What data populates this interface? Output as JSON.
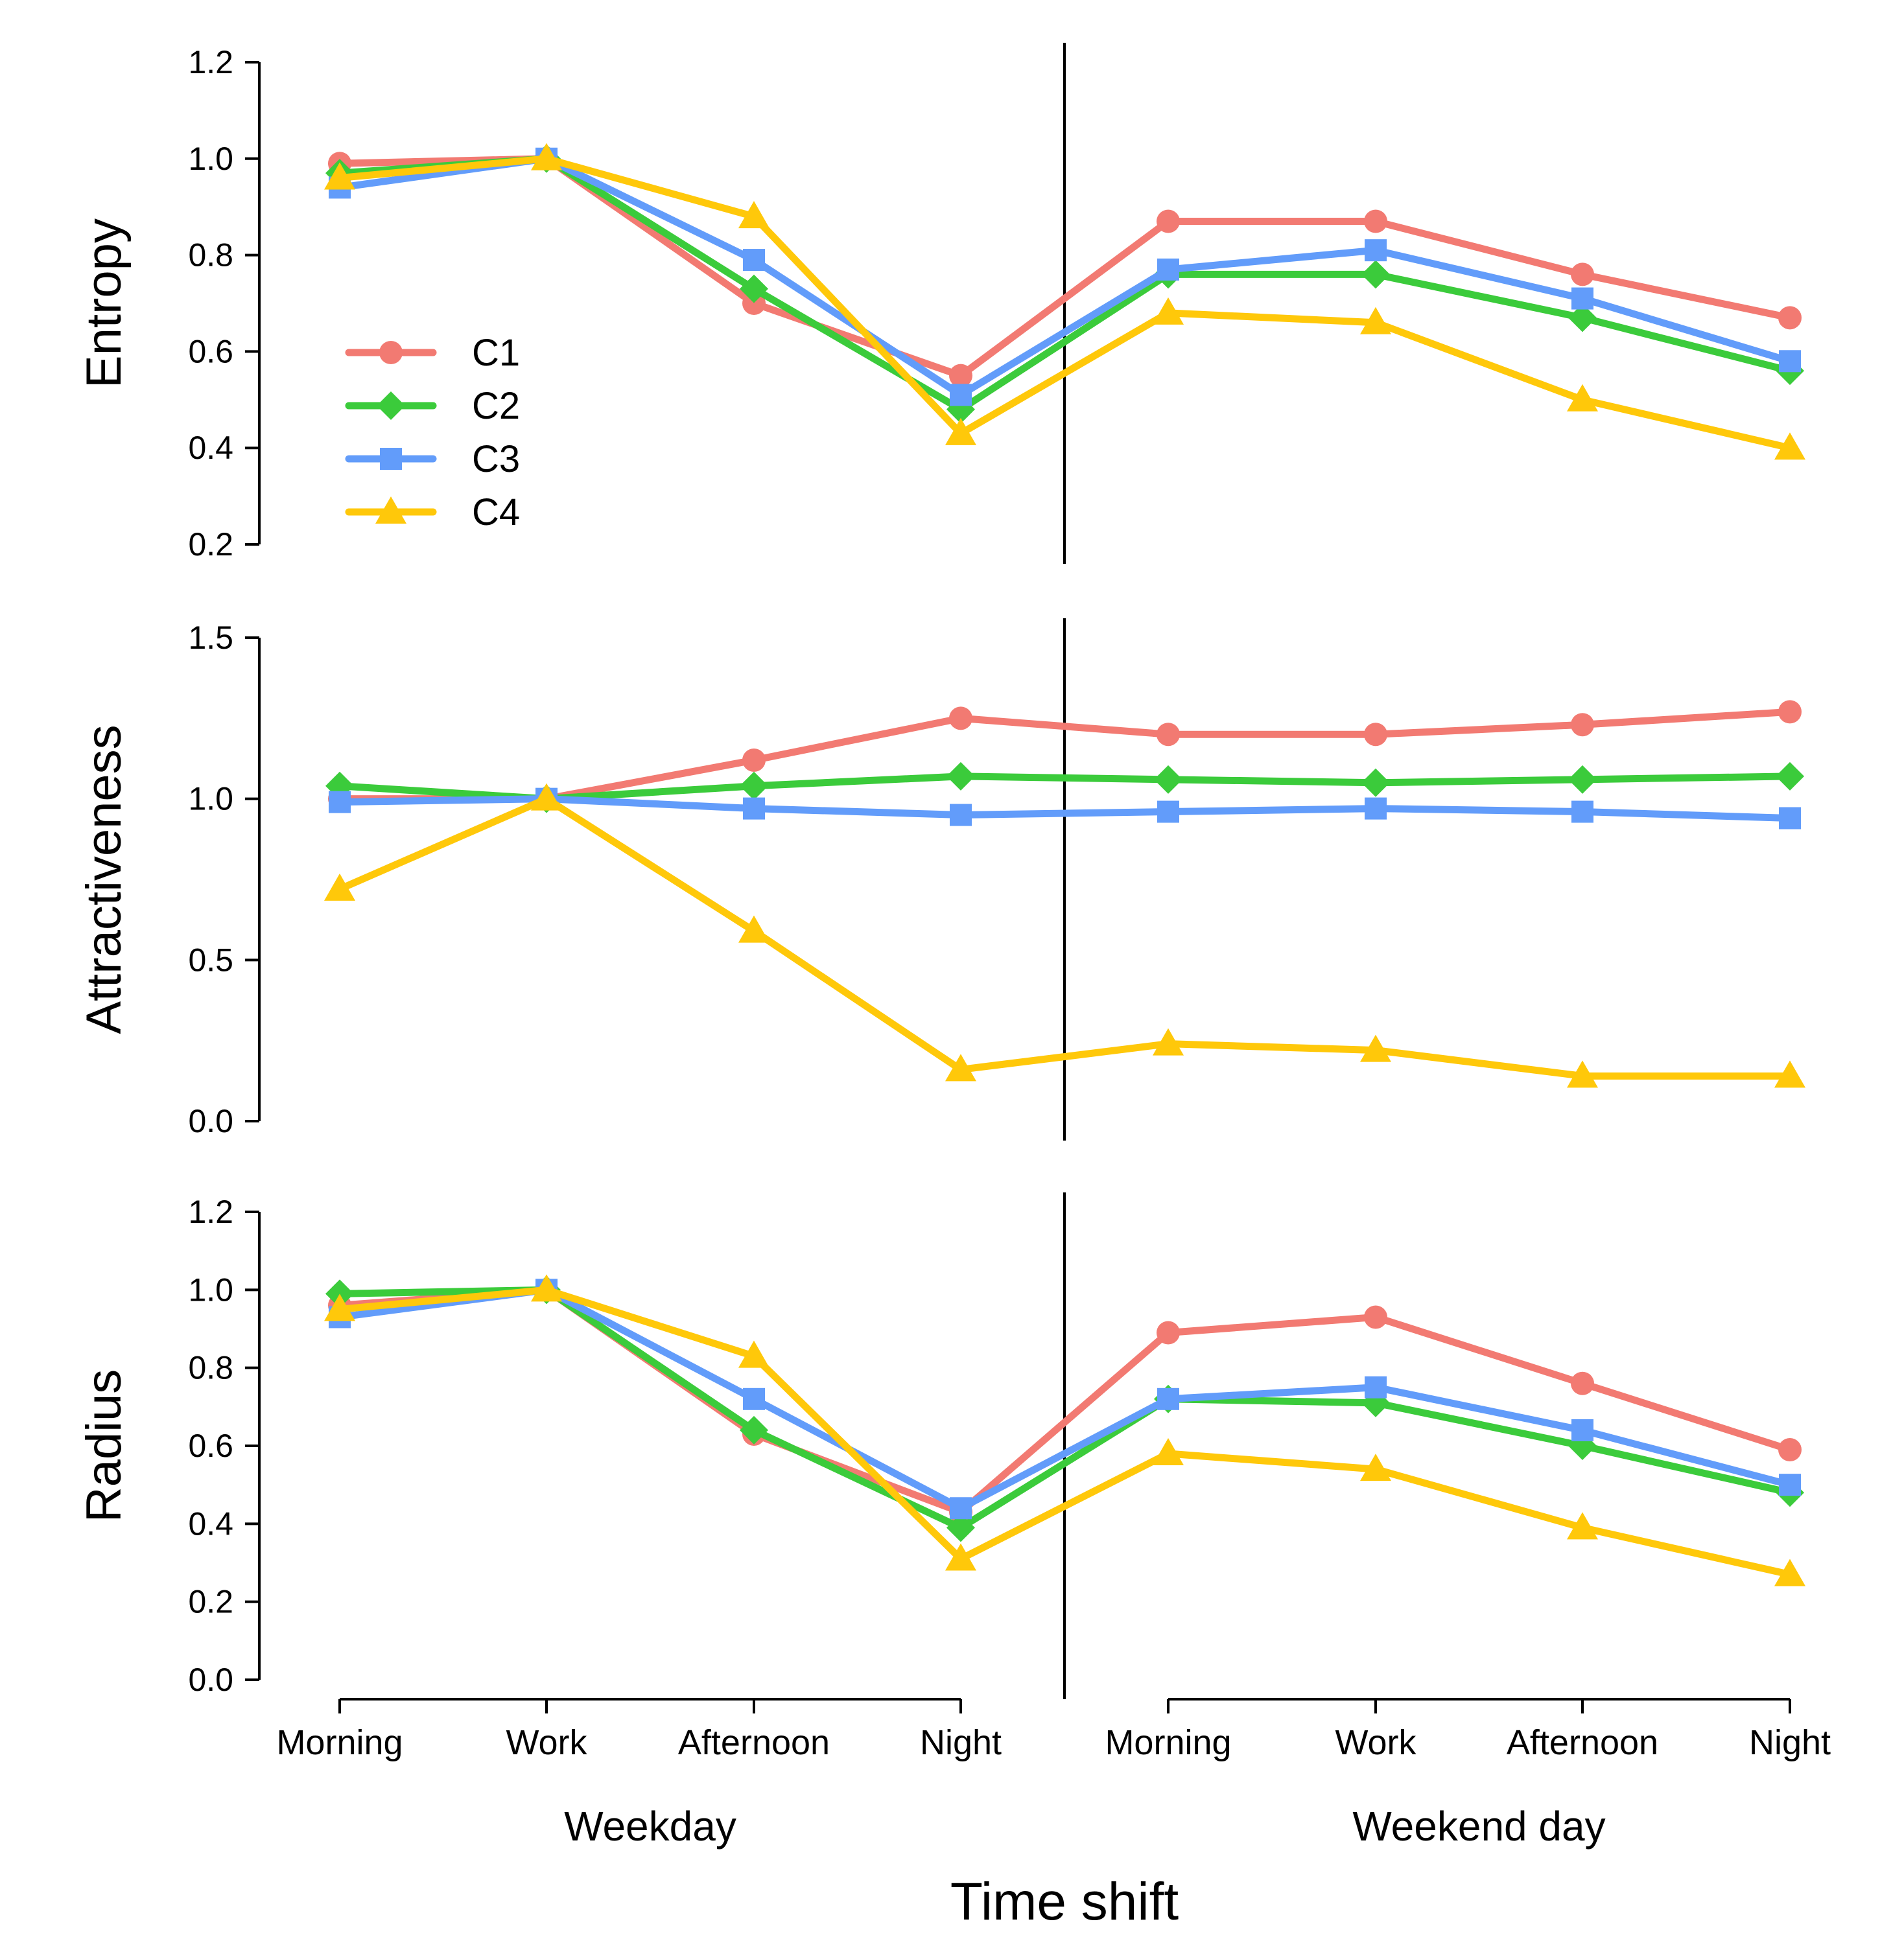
{
  "chart_data": {
    "type": "line",
    "xlabel": "Time shift",
    "categories": [
      "Morning",
      "Work",
      "Afternoon",
      "Night",
      "Morning",
      "Work",
      "Afternoon",
      "Night"
    ],
    "groups": [
      {
        "label": "Weekday",
        "categories": [
          "Morning",
          "Work",
          "Afternoon",
          "Night"
        ]
      },
      {
        "label": "Weekend day",
        "categories": [
          "Morning",
          "Work",
          "Afternoon",
          "Night"
        ]
      }
    ],
    "legend": {
      "placement": "upper-left of top panel",
      "entries": [
        {
          "name": "C1",
          "color": "#F27A72",
          "marker": "circle"
        },
        {
          "name": "C2",
          "color": "#3BCB3B",
          "marker": "diamond"
        },
        {
          "name": "C3",
          "color": "#629CFA",
          "marker": "square"
        },
        {
          "name": "C4",
          "color": "#FFC80A",
          "marker": "triangle"
        }
      ]
    },
    "panels": [
      {
        "ylabel": "Entropy",
        "ylim": [
          0.2,
          1.2
        ],
        "yticks": [
          0.2,
          0.4,
          0.6,
          0.8,
          1.0,
          1.2
        ],
        "ytick_labels": [
          "0.2",
          "0.4",
          "0.6",
          "0.8",
          "1.0",
          "1.2"
        ],
        "series": [
          {
            "name": "C1",
            "values": [
              0.99,
              1.0,
              0.7,
              0.55,
              0.87,
              0.87,
              0.76,
              0.67
            ]
          },
          {
            "name": "C2",
            "values": [
              0.97,
              1.0,
              0.73,
              0.48,
              0.76,
              0.76,
              0.67,
              0.56
            ]
          },
          {
            "name": "C3",
            "values": [
              0.94,
              1.0,
              0.79,
              0.51,
              0.77,
              0.81,
              0.71,
              0.58
            ]
          },
          {
            "name": "C4",
            "values": [
              0.96,
              1.0,
              0.88,
              0.43,
              0.68,
              0.66,
              0.5,
              0.4
            ]
          }
        ]
      },
      {
        "ylabel": "Attractiveness",
        "ylim": [
          0.0,
          1.5
        ],
        "yticks": [
          0.0,
          0.5,
          1.0,
          1.5
        ],
        "ytick_labels": [
          "0.0",
          "0.5",
          "1.0",
          "1.5"
        ],
        "series": [
          {
            "name": "C1",
            "values": [
              1.0,
              1.0,
              1.12,
              1.25,
              1.2,
              1.2,
              1.23,
              1.27
            ]
          },
          {
            "name": "C2",
            "values": [
              1.04,
              1.0,
              1.04,
              1.07,
              1.06,
              1.05,
              1.06,
              1.07
            ]
          },
          {
            "name": "C3",
            "values": [
              0.99,
              1.0,
              0.97,
              0.95,
              0.96,
              0.97,
              0.96,
              0.94
            ]
          },
          {
            "name": "C4",
            "values": [
              0.72,
              1.0,
              0.59,
              0.16,
              0.24,
              0.22,
              0.14,
              0.14
            ]
          }
        ]
      },
      {
        "ylabel": "Radius",
        "ylim": [
          0.0,
          1.2
        ],
        "yticks": [
          0.0,
          0.2,
          0.4,
          0.6,
          0.8,
          1.0,
          1.2
        ],
        "ytick_labels": [
          "0.0",
          "0.2",
          "0.4",
          "0.6",
          "0.8",
          "1.0",
          "1.2"
        ],
        "series": [
          {
            "name": "C1",
            "values": [
              0.96,
              1.0,
              0.63,
              0.43,
              0.89,
              0.93,
              0.76,
              0.59
            ]
          },
          {
            "name": "C2",
            "values": [
              0.99,
              1.0,
              0.64,
              0.39,
              0.72,
              0.71,
              0.6,
              0.48
            ]
          },
          {
            "name": "C3",
            "values": [
              0.93,
              1.0,
              0.72,
              0.44,
              0.72,
              0.75,
              0.64,
              0.5
            ]
          },
          {
            "name": "C4",
            "values": [
              0.95,
              1.0,
              0.83,
              0.31,
              0.58,
              0.54,
              0.39,
              0.27
            ]
          }
        ]
      }
    ]
  }
}
